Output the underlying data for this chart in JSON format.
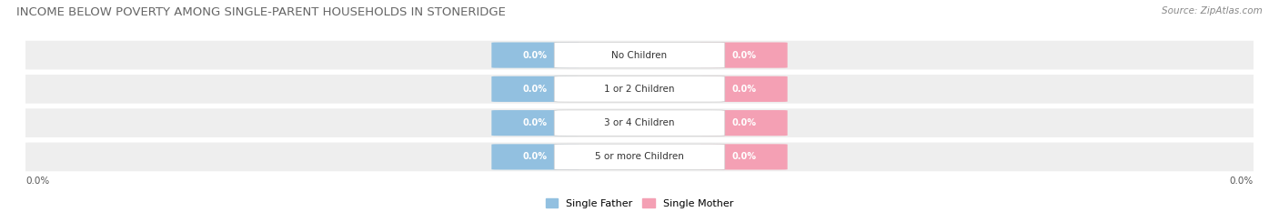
{
  "title": "INCOME BELOW POVERTY AMONG SINGLE-PARENT HOUSEHOLDS IN STONERIDGE",
  "source": "Source: ZipAtlas.com",
  "categories": [
    "No Children",
    "1 or 2 Children",
    "3 or 4 Children",
    "5 or more Children"
  ],
  "father_values": [
    0.0,
    0.0,
    0.0,
    0.0
  ],
  "mother_values": [
    0.0,
    0.0,
    0.0,
    0.0
  ],
  "father_color": "#92C0E0",
  "mother_color": "#F4A0B4",
  "row_bg_color": "#EEEEEE",
  "title_fontsize": 9.5,
  "source_fontsize": 7.5,
  "axis_label_left": "0.0%",
  "axis_label_right": "0.0%",
  "legend_father": "Single Father",
  "legend_mother": "Single Mother",
  "fig_width": 14.06,
  "fig_height": 2.33,
  "background_color": "#FFFFFF"
}
